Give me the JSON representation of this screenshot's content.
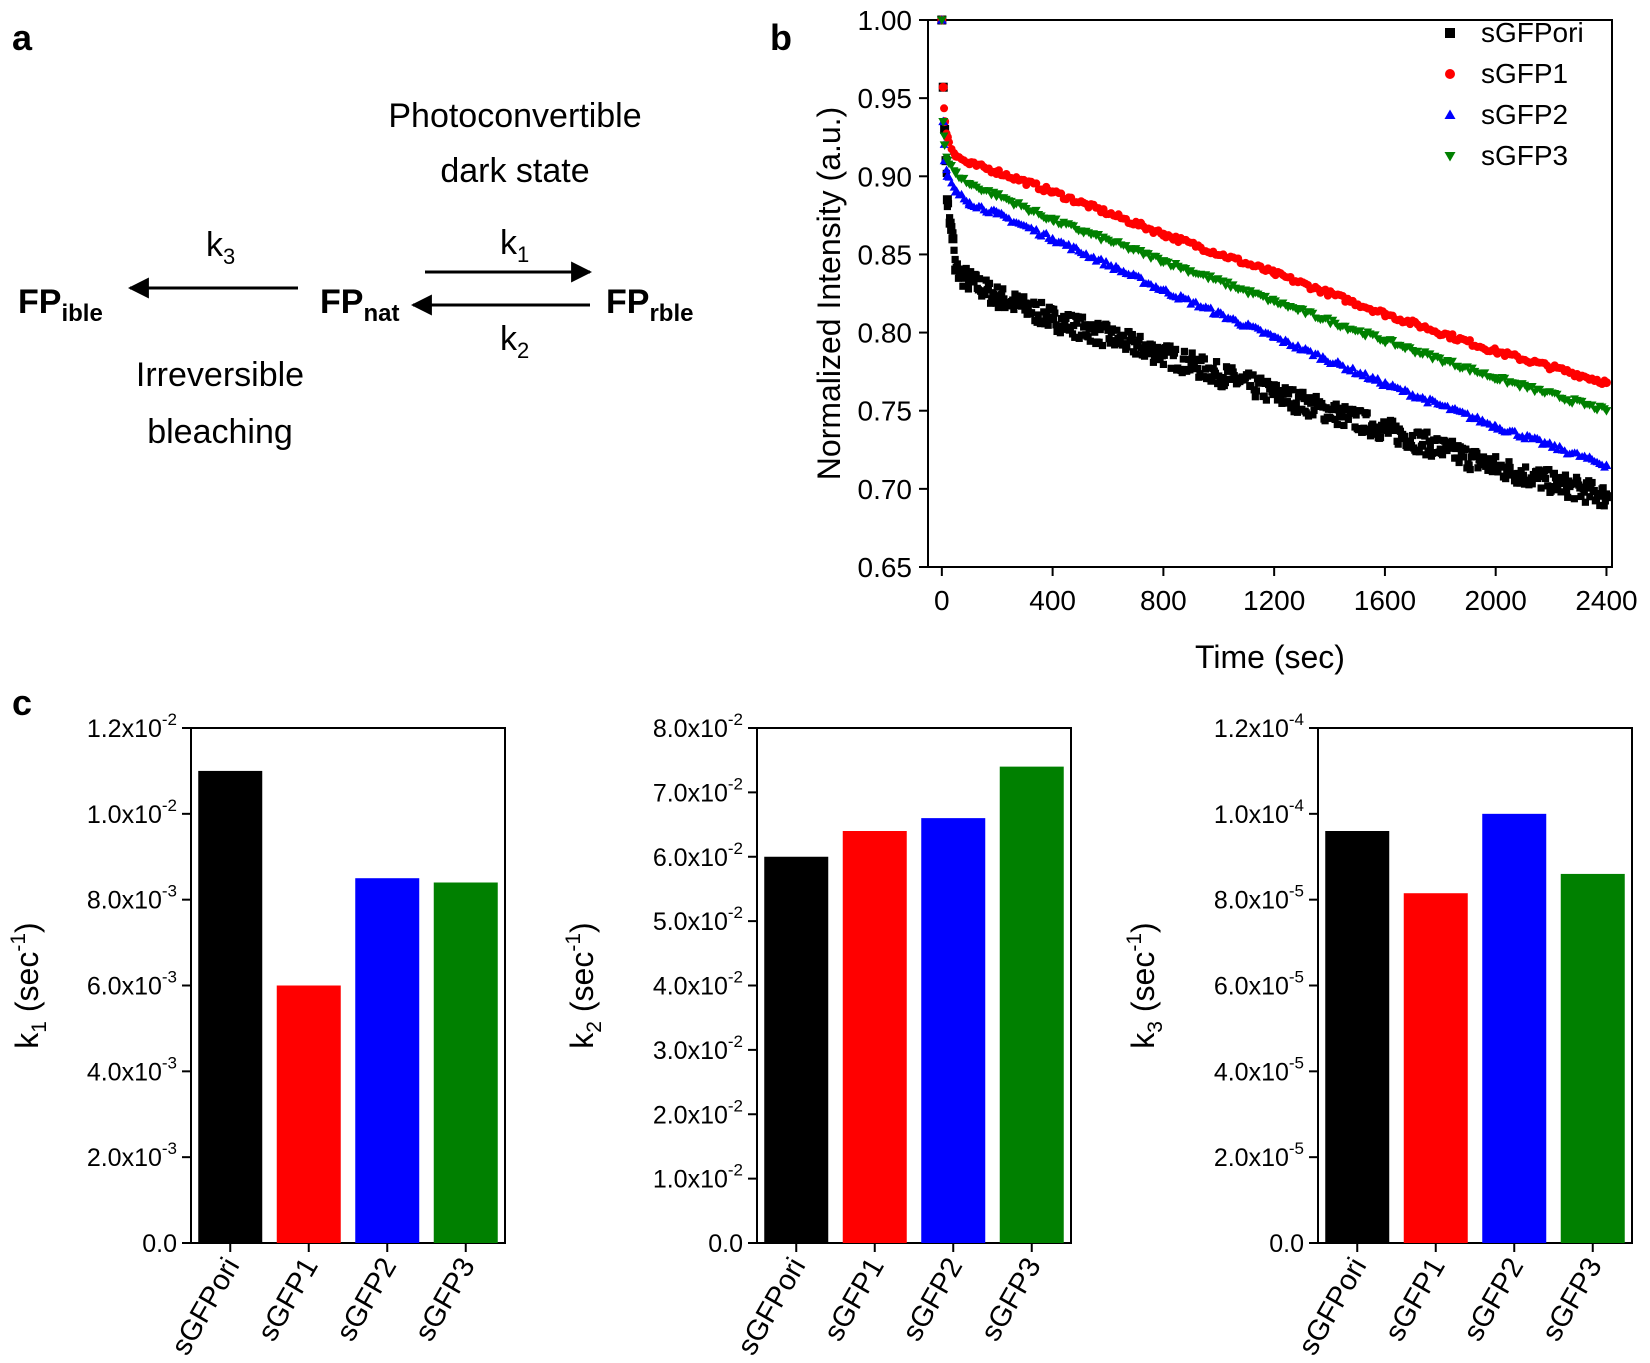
{
  "panel_labels": {
    "a": "a",
    "b": "b",
    "c": "c"
  },
  "scheme": {
    "top_label_line1": "Photoconvertible",
    "top_label_line2": "dark state",
    "bottom_label_line1": "Irreversible",
    "bottom_label_line2": "bleaching",
    "species": [
      {
        "base": "FP",
        "sub": "ible"
      },
      {
        "base": "FP",
        "sub": "nat"
      },
      {
        "base": "FP",
        "sub": "rble"
      }
    ],
    "rate_labels": [
      {
        "base": "k",
        "sub": "3"
      },
      {
        "base": "k",
        "sub": "1"
      },
      {
        "base": "k",
        "sub": "2"
      }
    ]
  },
  "colors": {
    "sGFPori": "#000000",
    "sGFP1": "#ff0000",
    "sGFP2": "#0000ff",
    "sGFP3": "#008000"
  },
  "chart_data": [
    {
      "panel": "b",
      "type": "scatter",
      "xlabel": "Time (sec)",
      "ylabel": "Normalized Intensity (a.u.)",
      "xlim": [
        -50,
        2420
      ],
      "ylim": [
        0.65,
        1.0
      ],
      "xticks": [
        0,
        400,
        800,
        1200,
        1600,
        2000,
        2400
      ],
      "yticks": [
        "0.65",
        "0.70",
        "0.75",
        "0.80",
        "0.85",
        "0.90",
        "0.95",
        "1.00"
      ],
      "legend_position": "top-right",
      "series": [
        {
          "name": "sGFPori",
          "marker": "square",
          "color": "#000000",
          "points": [
            [
              0,
              1.0
            ],
            [
              5,
              0.957
            ],
            [
              10,
              0.93
            ],
            [
              15,
              0.91
            ],
            [
              20,
              0.885
            ],
            [
              30,
              0.87
            ],
            [
              40,
              0.86
            ],
            [
              50,
              0.84
            ],
            [
              100,
              0.833
            ],
            [
              200,
              0.823
            ],
            [
              400,
              0.809
            ],
            [
              800,
              0.786
            ],
            [
              1200,
              0.761
            ],
            [
              1600,
              0.738
            ],
            [
              2000,
              0.714
            ],
            [
              2400,
              0.695
            ]
          ]
        },
        {
          "name": "sGFP1",
          "marker": "circle",
          "color": "#ff0000",
          "points": [
            [
              0,
              1.0
            ],
            [
              5,
              0.957
            ],
            [
              10,
              0.935
            ],
            [
              20,
              0.925
            ],
            [
              50,
              0.913
            ],
            [
              100,
              0.908
            ],
            [
              200,
              0.903
            ],
            [
              400,
              0.89
            ],
            [
              800,
              0.863
            ],
            [
              1200,
              0.838
            ],
            [
              1600,
              0.812
            ],
            [
              2000,
              0.788
            ],
            [
              2400,
              0.768
            ]
          ]
        },
        {
          "name": "sGFP2",
          "marker": "triangle-up",
          "color": "#0000ff",
          "points": [
            [
              0,
              1.0
            ],
            [
              5,
              0.935
            ],
            [
              10,
              0.91
            ],
            [
              20,
              0.9
            ],
            [
              50,
              0.89
            ],
            [
              100,
              0.883
            ],
            [
              200,
              0.876
            ],
            [
              400,
              0.86
            ],
            [
              800,
              0.827
            ],
            [
              1200,
              0.797
            ],
            [
              1600,
              0.767
            ],
            [
              2000,
              0.74
            ],
            [
              2400,
              0.715
            ]
          ]
        },
        {
          "name": "sGFP3",
          "marker": "triangle-down",
          "color": "#008000",
          "points": [
            [
              0,
              1.0
            ],
            [
              5,
              0.935
            ],
            [
              10,
              0.92
            ],
            [
              20,
              0.91
            ],
            [
              50,
              0.902
            ],
            [
              100,
              0.895
            ],
            [
              200,
              0.888
            ],
            [
              400,
              0.872
            ],
            [
              800,
              0.846
            ],
            [
              1200,
              0.82
            ],
            [
              1600,
              0.795
            ],
            [
              2000,
              0.771
            ],
            [
              2400,
              0.75
            ]
          ]
        }
      ]
    },
    {
      "panel": "c1",
      "type": "bar",
      "categories": [
        "sGFPori",
        "sGFP1",
        "sGFP2",
        "sGFP3"
      ],
      "values": [
        0.011,
        0.006,
        0.0085,
        0.0084
      ],
      "ylim": [
        0,
        0.012
      ],
      "ytick_values": [
        0,
        0.002,
        0.004,
        0.006,
        0.008,
        0.01,
        0.012
      ],
      "ytick_labels": [
        {
          "mantissa": "0.0"
        },
        {
          "mantissa": "2.0x10",
          "exp": "-3"
        },
        {
          "mantissa": "4.0x10",
          "exp": "-3"
        },
        {
          "mantissa": "6.0x10",
          "exp": "-3"
        },
        {
          "mantissa": "8.0x10",
          "exp": "-3"
        },
        {
          "mantissa": "1.0x10",
          "exp": "-2"
        },
        {
          "mantissa": "1.2x10",
          "exp": "-2"
        }
      ],
      "ylabel": {
        "base": "k",
        "sub": "1",
        "unit_open": " (sec",
        "unit_exp": "-1",
        "unit_close": ")"
      }
    },
    {
      "panel": "c2",
      "type": "bar",
      "categories": [
        "sGFPori",
        "sGFP1",
        "sGFP2",
        "sGFP3"
      ],
      "values": [
        0.06,
        0.064,
        0.066,
        0.074
      ],
      "ylim": [
        0,
        0.08
      ],
      "ytick_values": [
        0,
        0.01,
        0.02,
        0.03,
        0.04,
        0.05,
        0.06,
        0.07,
        0.08
      ],
      "ytick_labels": [
        {
          "mantissa": "0.0"
        },
        {
          "mantissa": "1.0x10",
          "exp": "-2"
        },
        {
          "mantissa": "2.0x10",
          "exp": "-2"
        },
        {
          "mantissa": "3.0x10",
          "exp": "-2"
        },
        {
          "mantissa": "4.0x10",
          "exp": "-2"
        },
        {
          "mantissa": "5.0x10",
          "exp": "-2"
        },
        {
          "mantissa": "6.0x10",
          "exp": "-2"
        },
        {
          "mantissa": "7.0x10",
          "exp": "-2"
        },
        {
          "mantissa": "8.0x10",
          "exp": "-2"
        }
      ],
      "ylabel": {
        "base": "k",
        "sub": "2",
        "unit_open": " (sec",
        "unit_exp": "-1",
        "unit_close": ")"
      }
    },
    {
      "panel": "c3",
      "type": "bar",
      "categories": [
        "sGFPori",
        "sGFP1",
        "sGFP2",
        "sGFP3"
      ],
      "values": [
        9.6e-05,
        8.15e-05,
        0.0001,
        8.6e-05
      ],
      "ylim": [
        0,
        0.00012
      ],
      "ytick_values": [
        0,
        2e-05,
        4e-05,
        6e-05,
        8e-05,
        0.0001,
        0.00012
      ],
      "ytick_labels": [
        {
          "mantissa": "0.0"
        },
        {
          "mantissa": "2.0x10",
          "exp": "-5"
        },
        {
          "mantissa": "4.0x10",
          "exp": "-5"
        },
        {
          "mantissa": "6.0x10",
          "exp": "-5"
        },
        {
          "mantissa": "8.0x10",
          "exp": "-5"
        },
        {
          "mantissa": "1.0x10",
          "exp": "-4"
        },
        {
          "mantissa": "1.2x10",
          "exp": "-4"
        }
      ],
      "ylabel": {
        "base": "k",
        "sub": "3",
        "unit_open": " (sec",
        "unit_exp": "-1",
        "unit_close": ")"
      }
    }
  ]
}
